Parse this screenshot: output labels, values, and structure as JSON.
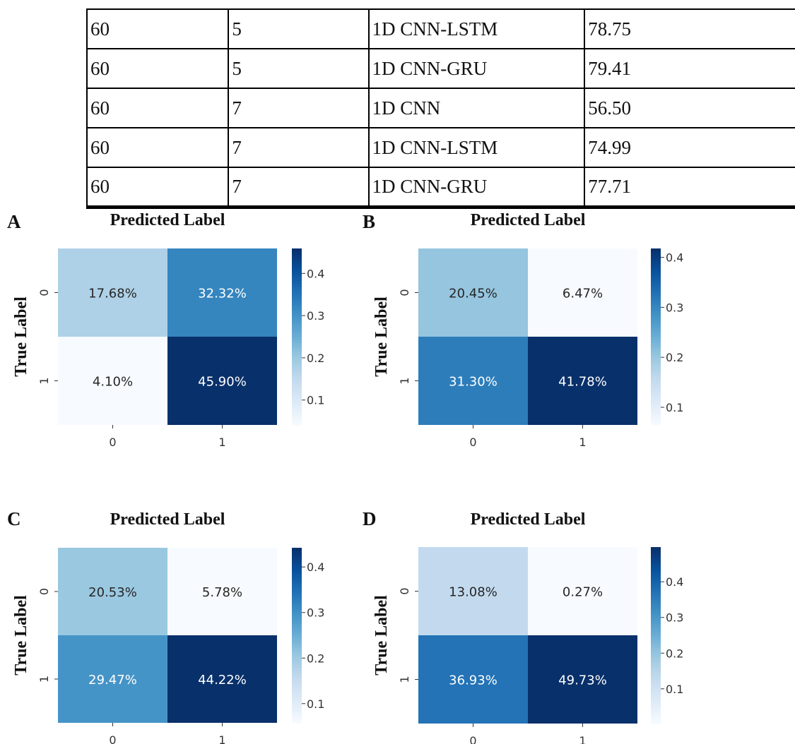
{
  "table": {
    "rows": [
      [
        "60",
        "5",
        "1D CNN-LSTM",
        "78.75"
      ],
      [
        "60",
        "5",
        "1D CNN-GRU",
        "79.41"
      ],
      [
        "60",
        "7",
        "1D CNN",
        "56.50"
      ],
      [
        "60",
        "7",
        "1D CNN-LSTM",
        "74.99"
      ],
      [
        "60",
        "7",
        "1D CNN-GRU",
        "77.71"
      ]
    ]
  },
  "chart_data": [
    {
      "type": "heatmap",
      "panel": "A",
      "title": "Predicted Label",
      "ylabel": "True Label",
      "x_ticks": [
        "0",
        "1"
      ],
      "y_ticks": [
        "0",
        "1"
      ],
      "values": [
        [
          0.1768,
          0.3232
        ],
        [
          0.041,
          0.459
        ]
      ],
      "labels": [
        [
          "17.68%",
          "32.32%"
        ],
        [
          "4.10%",
          "45.90%"
        ]
      ],
      "colorbar": {
        "ticks": [
          0.4,
          0.3,
          0.2,
          0.1
        ],
        "tick_labels": [
          "0.4",
          "0.3",
          "0.2",
          "0.1"
        ],
        "range": [
          0.041,
          0.459
        ]
      },
      "colormap": "Blues"
    },
    {
      "type": "heatmap",
      "panel": "B",
      "title": "Predicted Label",
      "ylabel": "True Label",
      "x_ticks": [
        "0",
        "1"
      ],
      "y_ticks": [
        "0",
        "1"
      ],
      "values": [
        [
          0.2045,
          0.0647
        ],
        [
          0.313,
          0.4178
        ]
      ],
      "labels": [
        [
          "20.45%",
          "6.47%"
        ],
        [
          "31.30%",
          "41.78%"
        ]
      ],
      "colorbar": {
        "ticks": [
          0.4,
          0.3,
          0.2,
          0.1
        ],
        "tick_labels": [
          "0.4",
          "0.3",
          "0.2",
          "0.1"
        ],
        "range": [
          0.0647,
          0.4178
        ]
      },
      "colormap": "Blues"
    },
    {
      "type": "heatmap",
      "panel": "C",
      "title": "Predicted Label",
      "ylabel": "True Label",
      "x_ticks": [
        "0",
        "1"
      ],
      "y_ticks": [
        "0",
        "1"
      ],
      "values": [
        [
          0.2053,
          0.0578
        ],
        [
          0.2947,
          0.4422
        ]
      ],
      "labels": [
        [
          "20.53%",
          "5.78%"
        ],
        [
          "29.47%",
          "44.22%"
        ]
      ],
      "colorbar": {
        "ticks": [
          0.4,
          0.3,
          0.2,
          0.1
        ],
        "tick_labels": [
          "0.4",
          "0.3",
          "0.2",
          "0.1"
        ],
        "range": [
          0.0578,
          0.4422
        ]
      },
      "colormap": "Blues"
    },
    {
      "type": "heatmap",
      "panel": "D",
      "title": "Predicted Label",
      "ylabel": "True Label",
      "x_ticks": [
        "0",
        "1"
      ],
      "y_ticks": [
        "0",
        "1"
      ],
      "values": [
        [
          0.1308,
          0.0027
        ],
        [
          0.3693,
          0.4973
        ]
      ],
      "labels": [
        [
          "13.08%",
          "0.27%"
        ],
        [
          "36.93%",
          "49.73%"
        ]
      ],
      "colorbar": {
        "ticks": [
          0.4,
          0.3,
          0.2,
          0.1
        ],
        "tick_labels": [
          "0.4",
          "0.3",
          "0.2",
          "0.1"
        ],
        "range": [
          0.0027,
          0.4973
        ]
      },
      "colormap": "Blues"
    }
  ]
}
